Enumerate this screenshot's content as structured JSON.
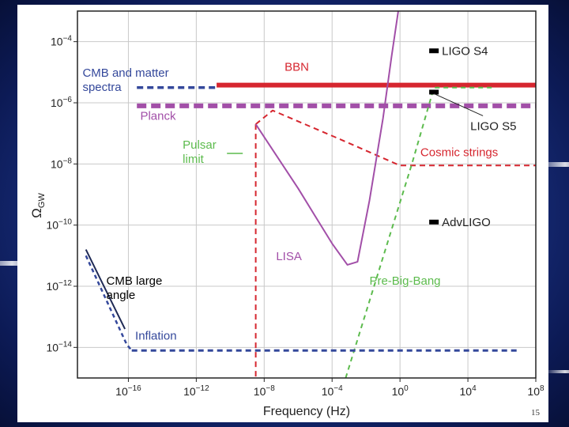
{
  "page_number": "15",
  "chart_data": {
    "type": "line",
    "xlabel": "Frequency (Hz)",
    "ylabel_main": "Ω",
    "ylabel_sub": "GW",
    "x_log_range": [
      -19,
      8
    ],
    "y_log_range": [
      -15,
      -3
    ],
    "grid": true,
    "x_ticks": [
      {
        "exp": -16,
        "base": "10",
        "sup": "−16"
      },
      {
        "exp": -12,
        "base": "10",
        "sup": "−12"
      },
      {
        "exp": -8,
        "base": "10",
        "sup": "−8"
      },
      {
        "exp": -4,
        "base": "10",
        "sup": "−4"
      },
      {
        "exp": 0,
        "base": "10",
        "sup": "0"
      },
      {
        "exp": 4,
        "base": "10",
        "sup": "4"
      },
      {
        "exp": 8,
        "base": "10",
        "sup": "8"
      }
    ],
    "y_ticks": [
      {
        "exp": -4,
        "base": "10",
        "sup": "−4"
      },
      {
        "exp": -6,
        "base": "10",
        "sup": "−6"
      },
      {
        "exp": -8,
        "base": "10",
        "sup": "−8"
      },
      {
        "exp": -10,
        "base": "10",
        "sup": "−10"
      },
      {
        "exp": -12,
        "base": "10",
        "sup": "−12"
      },
      {
        "exp": -14,
        "base": "10",
        "sup": "−14"
      }
    ],
    "series": [
      {
        "key": "bbn",
        "color": "#d6262f",
        "dash": "solid",
        "width": 6,
        "points": [
          [
            -10.8,
            -5.42
          ],
          [
            8.5,
            -5.42
          ]
        ]
      },
      {
        "key": "cmb_matter",
        "color": "#34489b",
        "dash": "8,5",
        "width": 3.5,
        "points": [
          [
            -15.5,
            -5.5
          ],
          [
            -10.8,
            -5.5
          ]
        ]
      },
      {
        "key": "planck",
        "color": "#a24fa8",
        "dash": "12,6",
        "width": 6,
        "points": [
          [
            -15.5,
            -6.1
          ],
          [
            8.5,
            -6.1
          ]
        ]
      },
      {
        "key": "cosmic_strings",
        "color": "#d6262f",
        "dash": "7,5",
        "width": 2,
        "points": [
          [
            -8.5,
            -6.7
          ],
          [
            -7.5,
            -6.25
          ],
          [
            -3.5,
            -7.2
          ],
          [
            0,
            -8.05
          ],
          [
            8.5,
            -8.05
          ]
        ]
      },
      {
        "key": "cosmic_strings_vertical",
        "color": "#d6262f",
        "dash": "7,5",
        "width": 2,
        "points": [
          [
            -8.5,
            -6.7
          ],
          [
            -8.5,
            -15
          ]
        ]
      },
      {
        "key": "lisa",
        "color": "#a24fa8",
        "dash": "solid",
        "width": 2,
        "points": [
          [
            -8.5,
            -6.7
          ],
          [
            -6.0,
            -8.8
          ],
          [
            -5.0,
            -9.7
          ],
          [
            -4.0,
            -10.6
          ],
          [
            -3.1,
            -11.3
          ],
          [
            -2.5,
            -11.2
          ],
          [
            -1.8,
            -9.2
          ],
          [
            -1.0,
            -6.5
          ],
          [
            -0.5,
            -4.5
          ],
          [
            -0.05,
            -2.8
          ]
        ]
      },
      {
        "key": "pre_big_bang",
        "color": "#5cbb4d",
        "dash": "6,5",
        "width": 2,
        "points": [
          [
            -3.2,
            -15
          ],
          [
            0.7,
            -8.0
          ],
          [
            2.0,
            -5.5
          ],
          [
            5.5,
            -5.5
          ]
        ]
      },
      {
        "key": "cmb_large_angle",
        "color": "#1f2a55",
        "dash": "solid",
        "width": 2,
        "points": [
          [
            -18.5,
            -10.8
          ],
          [
            -16.2,
            -13.4
          ]
        ]
      },
      {
        "key": "inflation_rise",
        "color": "#34489b",
        "dash": "5,4",
        "width": 2.5,
        "points": [
          [
            -18.5,
            -11.0
          ],
          [
            -16.1,
            -13.9
          ],
          [
            -15.8,
            -14.1
          ]
        ]
      },
      {
        "key": "inflation",
        "color": "#34489b",
        "dash": "7,5",
        "width": 3,
        "points": [
          [
            -15.8,
            -14.1
          ],
          [
            7.0,
            -14.1
          ]
        ]
      }
    ],
    "markers": [
      {
        "key": "ligo_s4",
        "label": "LIGO S4",
        "x": 2.0,
        "y": -4.3,
        "color": "#000000"
      },
      {
        "key": "ligo_s5",
        "label": "LIGO S5",
        "x": 2.0,
        "y": -5.65,
        "color": "#000000"
      },
      {
        "key": "adv_ligo",
        "label": "AdvLIGO",
        "x": 2.0,
        "y": -9.9,
        "color": "#000000"
      }
    ],
    "annotations": [
      {
        "key": "cmb_matter_label",
        "lines": [
          "CMB and matter",
          "spectra"
        ],
        "x": -18.7,
        "y": -5.15,
        "color": "#34489b"
      },
      {
        "key": "bbn_label",
        "lines": [
          "BBN"
        ],
        "x": -6.8,
        "y": -4.95,
        "color": "#d6262f"
      },
      {
        "key": "planck_label",
        "lines": [
          "Planck"
        ],
        "x": -15.3,
        "y": -6.55,
        "color": "#a24fa8"
      },
      {
        "key": "pulsar_label",
        "lines": [
          "Pulsar",
          "limit"
        ],
        "x": -12.8,
        "y": -7.5,
        "color": "#5cbb4d"
      },
      {
        "key": "cosmic_strings_label",
        "lines": [
          "Cosmic strings"
        ],
        "x": 1.2,
        "y": -7.75,
        "color": "#d6262f"
      },
      {
        "key": "lisa_label",
        "lines": [
          "LISA"
        ],
        "x": -7.3,
        "y": -11.15,
        "color": "#a24fa8"
      },
      {
        "key": "pre_big_bang_label",
        "lines": [
          "Pre-Big-Bang"
        ],
        "x": -1.8,
        "y": -11.95,
        "color": "#5cbb4d"
      },
      {
        "key": "cmb_large_angle_label",
        "lines": [
          "CMB large",
          "angle"
        ],
        "x": -17.3,
        "y": -11.95,
        "color": "#000000"
      },
      {
        "key": "inflation_label",
        "lines": [
          "Inflation"
        ],
        "x": -15.6,
        "y": -13.75,
        "color": "#34489b"
      }
    ]
  }
}
